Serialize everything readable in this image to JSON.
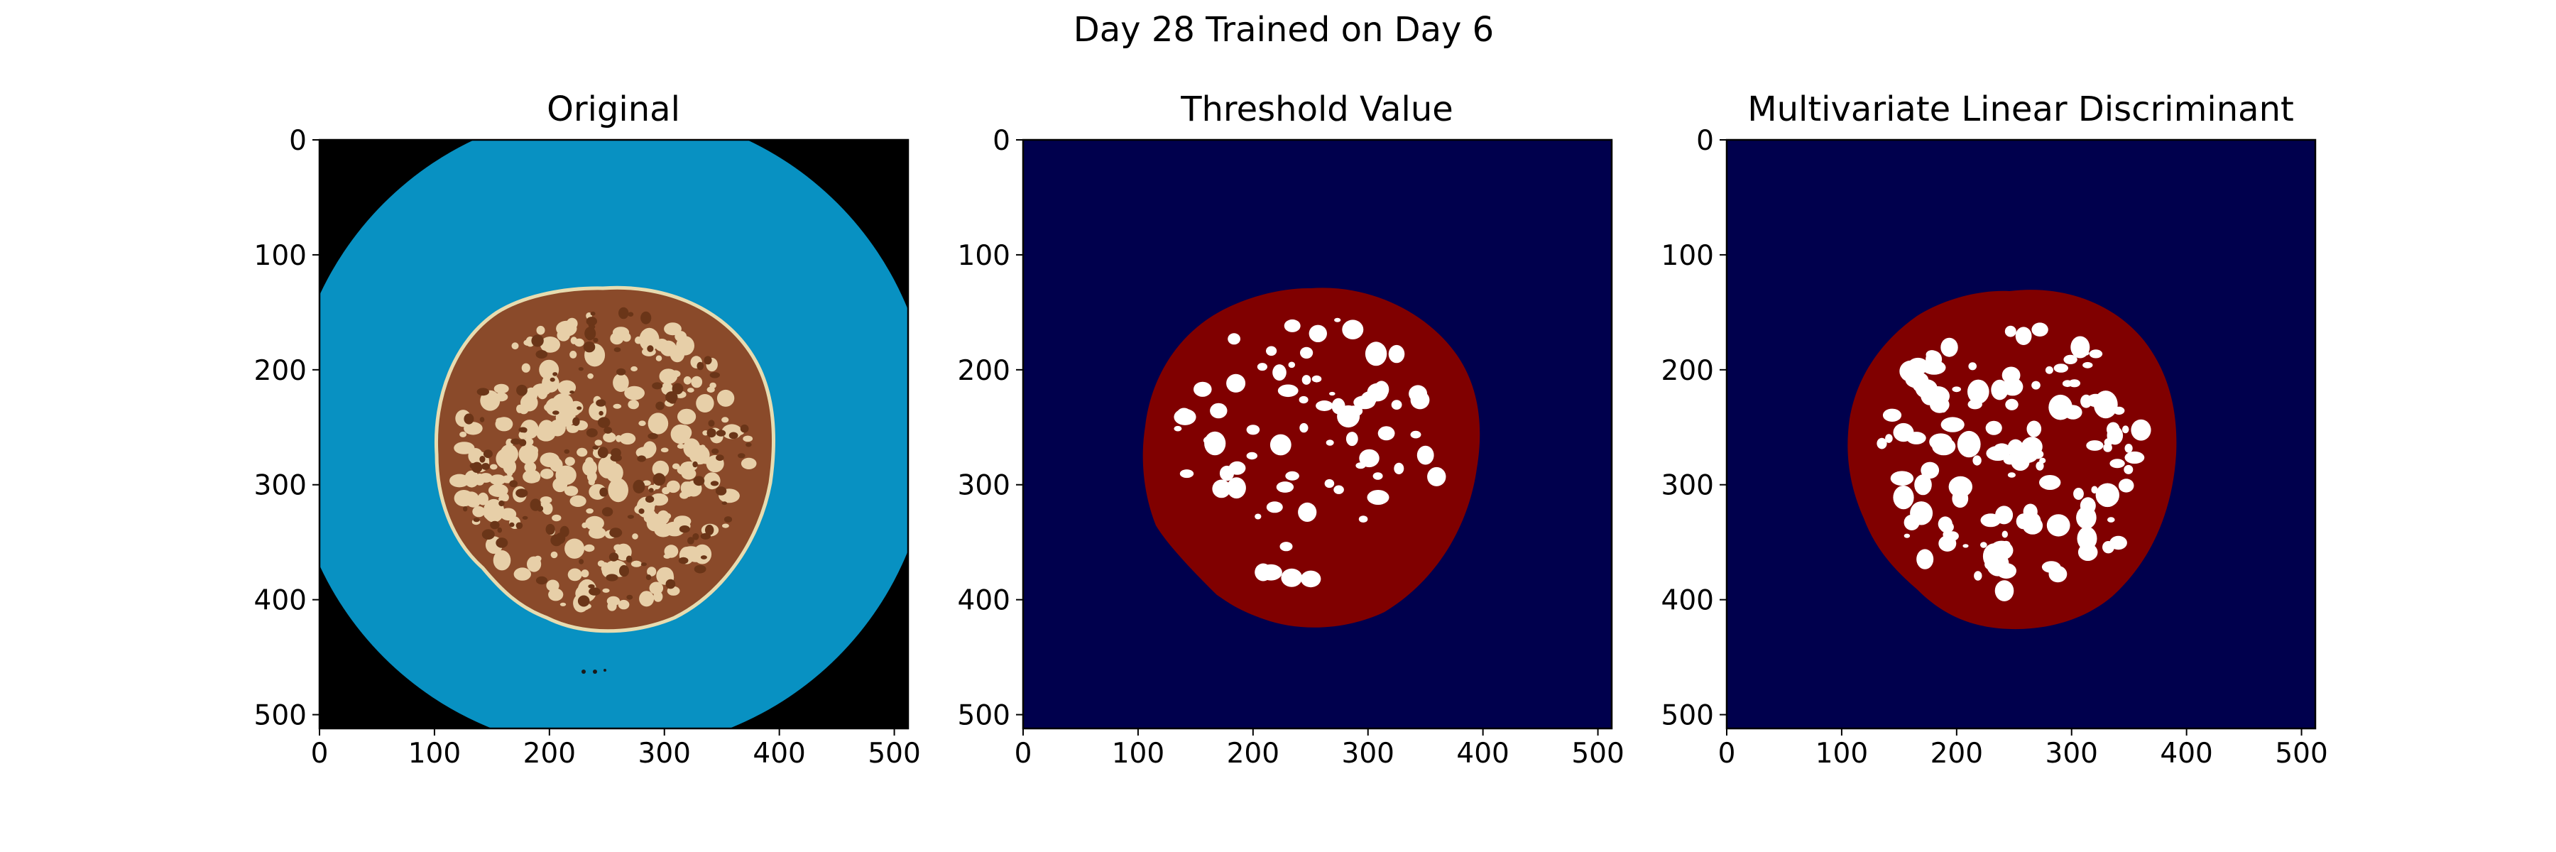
{
  "figure_title": "Day 28 Trained on Day 6",
  "colors": {
    "original_background": "#000000",
    "original_dish": "#0891c2",
    "sausage_base": "#8a4a2a",
    "sausage_speckle": "#e7cfa8",
    "jet_background": "#00004d",
    "jet_foreground": "#800000",
    "fat_spots": "#ffffff"
  },
  "chart_data": [
    {
      "type": "image",
      "title": "Original",
      "xlim": [
        0,
        512
      ],
      "ylim": [
        512,
        0
      ],
      "xticks": [
        0,
        100,
        200,
        300,
        400,
        500
      ],
      "yticks": [
        0,
        100,
        200,
        300,
        400,
        500
      ],
      "image_content": "RGB photo of a sausage slice on a blue dish"
    },
    {
      "type": "image",
      "title": "Threshold Value",
      "xlim": [
        0,
        512
      ],
      "ylim": [
        512,
        0
      ],
      "xticks": [
        0,
        100,
        200,
        300,
        400,
        500
      ],
      "yticks": [
        0,
        100,
        200,
        300,
        400,
        500
      ],
      "image_content": "binary segmentation mask, jet colormap"
    },
    {
      "type": "image",
      "title": "Multivariate Linear Discriminant",
      "xlim": [
        0,
        512
      ],
      "ylim": [
        512,
        0
      ],
      "xticks": [
        0,
        100,
        200,
        300,
        400,
        500
      ],
      "yticks": [
        0,
        100,
        200,
        300,
        400,
        500
      ],
      "image_content": "binary segmentation mask, jet colormap"
    }
  ]
}
